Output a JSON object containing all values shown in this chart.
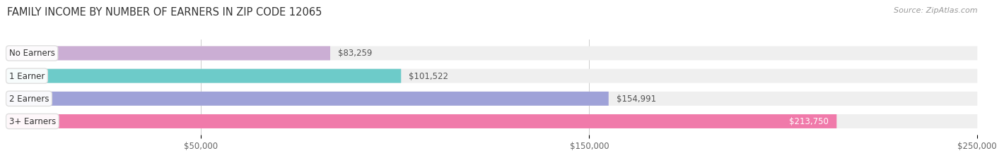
{
  "title": "FAMILY INCOME BY NUMBER OF EARNERS IN ZIP CODE 12065",
  "source": "Source: ZipAtlas.com",
  "categories": [
    "No Earners",
    "1 Earner",
    "2 Earners",
    "3+ Earners"
  ],
  "values": [
    83259,
    101522,
    154991,
    213750
  ],
  "bar_colors": [
    "#cbaed4",
    "#6dcbc9",
    "#9fa2d8",
    "#f07aaa"
  ],
  "bar_bg_color": "#efefef",
  "value_label_colors": [
    "#666666",
    "#666666",
    "#666666",
    "#ffffff"
  ],
  "xlim": [
    0,
    250000
  ],
  "xticks": [
    50000,
    150000,
    250000
  ],
  "xtick_labels": [
    "$50,000",
    "$150,000",
    "$250,000"
  ],
  "fig_bg_color": "#ffffff",
  "bar_height": 0.62,
  "title_fontsize": 10.5,
  "source_fontsize": 8,
  "value_fontsize": 8.5,
  "category_fontsize": 8.5
}
